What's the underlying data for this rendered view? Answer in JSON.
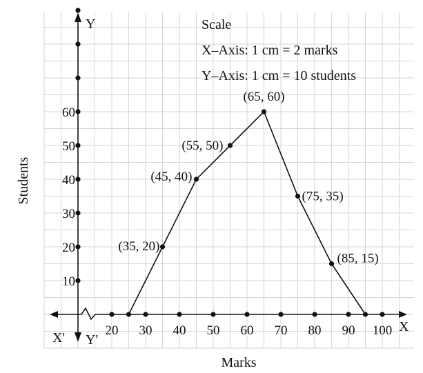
{
  "chart_data": {
    "type": "line",
    "title": "",
    "xlabel": "Marks",
    "ylabel": "Students",
    "xlim": [
      20,
      100
    ],
    "ylim": [
      0,
      60
    ],
    "grid": true,
    "x_ticks": [
      "20",
      "30",
      "40",
      "50",
      "60",
      "70",
      "80",
      "90",
      "100"
    ],
    "y_ticks": [
      "10",
      "20",
      "30",
      "40",
      "50",
      "60"
    ],
    "series": [
      {
        "points": [
          {
            "x": 25,
            "y": 0,
            "label": ""
          },
          {
            "x": 35,
            "y": 20,
            "label": "(35, 20)"
          },
          {
            "x": 45,
            "y": 40,
            "label": "(45, 40)"
          },
          {
            "x": 55,
            "y": 50,
            "label": "(55, 50)"
          },
          {
            "x": 65,
            "y": 60,
            "label": "(65, 60)"
          },
          {
            "x": 75,
            "y": 35,
            "label": "(75, 35)"
          },
          {
            "x": 85,
            "y": 15,
            "label": "(85, 15)"
          },
          {
            "x": 95,
            "y": 0,
            "label": ""
          }
        ]
      }
    ],
    "axis_names": {
      "x_pos": "X",
      "x_neg": "X'",
      "y_pos": "Y",
      "y_neg": "Y'"
    },
    "scale": {
      "heading": "Scale",
      "x_axis": "X–Axis: 1 cm = 2 marks",
      "y_axis": "Y–Axis: 1 cm = 10 students"
    }
  }
}
